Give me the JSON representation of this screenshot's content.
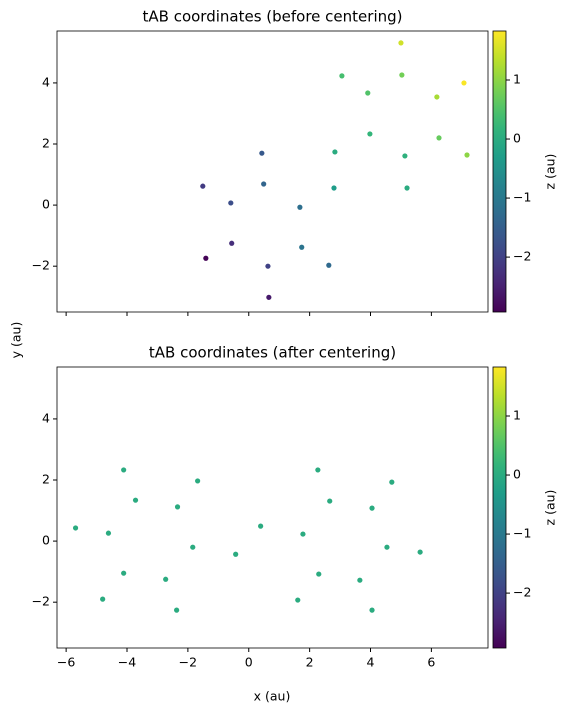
{
  "xlabel": "x (au)",
  "ylabel": "y (au)",
  "chart_data": [
    {
      "type": "scatter",
      "title": "tAB coordinates (before centering)",
      "cmap": "viridis",
      "xlim": [
        -6.3,
        7.86
      ],
      "ylim": [
        -3.5,
        5.7
      ],
      "xticks": [
        {
          "value": -6,
          "label": "−6"
        },
        {
          "value": -4,
          "label": "−4"
        },
        {
          "value": -2,
          "label": "−2"
        },
        0,
        2,
        4,
        6
      ],
      "yticks": [
        {
          "value": -2,
          "label": "−2"
        },
        0,
        2,
        4
      ],
      "colorbar": {
        "label": "z (au)",
        "lim": [
          -2.93,
          1.83
        ],
        "ticks": [
          {
            "value": -2,
            "label": "−2"
          },
          {
            "value": -1,
            "label": "−1"
          },
          0,
          1
        ]
      },
      "series": [
        {
          "x": [
            5.0,
            3.06,
            5.03,
            7.07,
            3.91,
            6.18,
            3.98,
            6.25,
            0.43,
            2.83,
            5.13,
            7.17,
            -1.51,
            0.49,
            2.8,
            5.2,
            -0.59,
            1.68,
            -0.56,
            -1.41,
            1.74,
            2.63,
            0.63,
            0.66
          ],
          "y": [
            5.31,
            4.23,
            4.26,
            4.0,
            3.67,
            3.54,
            2.33,
            2.2,
            1.7,
            1.74,
            1.61,
            1.64,
            0.62,
            0.69,
            0.56,
            0.56,
            0.07,
            -0.07,
            -1.25,
            -1.74,
            -1.38,
            -1.97,
            -2.0,
            -3.02
          ],
          "z": [
            1.5,
            0.4,
            0.8,
            1.8,
            0.5,
            1.2,
            0.2,
            0.7,
            -1.6,
            0.0,
            0.1,
            1.0,
            -2.1,
            -1.4,
            -0.3,
            0.0,
            -1.8,
            -1.2,
            -2.3,
            -2.9,
            -1.1,
            -1.3,
            -2.0,
            -2.6
          ]
        }
      ]
    },
    {
      "type": "scatter",
      "title": "tAB coordinates (after centering)",
      "cmap": "viridis",
      "xlim": [
        -6.3,
        7.86
      ],
      "ylim": [
        -3.5,
        5.7
      ],
      "xticks": [
        {
          "value": -6,
          "label": "−6"
        },
        {
          "value": -4,
          "label": "−4"
        },
        {
          "value": -2,
          "label": "−2"
        },
        0,
        2,
        4,
        6
      ],
      "yticks": [
        {
          "value": -2,
          "label": "−2"
        },
        0,
        2,
        4
      ],
      "colorbar": {
        "label": "z (au)",
        "lim": [
          -2.93,
          1.83
        ],
        "ticks": [
          {
            "value": -2,
            "label": "−2"
          },
          {
            "value": -1,
            "label": "−1"
          },
          0,
          1
        ]
      },
      "series": [
        {
          "x": [
            -4.11,
            2.27,
            -1.68,
            4.7,
            -3.72,
            2.66,
            -2.34,
            4.05,
            -5.69,
            0.39,
            -4.61,
            1.78,
            -1.84,
            4.54,
            -0.43,
            5.63,
            -4.11,
            2.3,
            -2.73,
            3.65,
            -4.8,
            1.61,
            -2.37,
            4.05
          ],
          "y": [
            2.33,
            2.33,
            1.97,
            1.93,
            1.34,
            1.31,
            1.12,
            1.08,
            0.43,
            0.49,
            0.26,
            0.23,
            -0.2,
            -0.2,
            -0.43,
            -0.36,
            -1.05,
            -1.08,
            -1.25,
            -1.28,
            -1.9,
            -1.93,
            -2.26,
            -2.26
          ],
          "z": [
            0,
            0,
            0,
            0,
            0,
            0,
            0,
            0,
            0,
            0,
            0,
            0,
            0,
            0,
            0,
            0,
            0,
            0,
            0,
            0,
            0,
            0,
            0,
            0
          ]
        }
      ]
    }
  ]
}
